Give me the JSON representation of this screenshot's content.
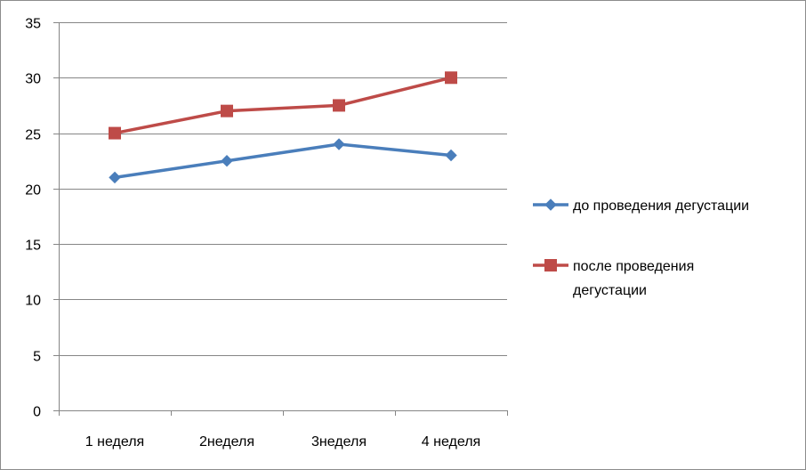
{
  "chart_data": {
    "type": "line",
    "categories": [
      "1 неделя",
      "2неделя",
      "3неделя",
      "4 неделя"
    ],
    "series": [
      {
        "name": "до проведения дегустации",
        "values": [
          21,
          22.5,
          24,
          23
        ],
        "color": "#4a7ebb",
        "marker": "diamond"
      },
      {
        "name": "после проведения дегустации",
        "values": [
          25,
          27,
          27.5,
          30
        ],
        "color": "#be4b48",
        "marker": "square"
      }
    ],
    "ylim": [
      0,
      35
    ],
    "yticks": [
      0,
      5,
      10,
      15,
      20,
      25,
      30,
      35
    ],
    "grid": true,
    "legend": "right"
  }
}
